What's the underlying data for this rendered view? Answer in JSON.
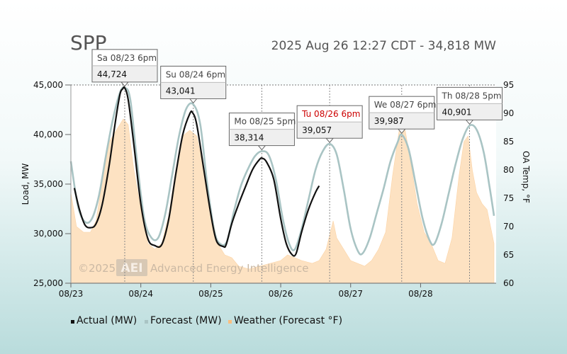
{
  "header": {
    "region": "SPP",
    "status": "2025 Aug 26 12:27 CDT - 34,818 MW"
  },
  "watermark": {
    "copyright": "©2025",
    "brand": "AEI",
    "company": "Advanced Energy Intelligence"
  },
  "colors": {
    "actual": "#111111",
    "forecast": "#a9c4c4",
    "weather": "#fde2c2",
    "highlight": "#cc0000"
  },
  "chart_data": {
    "type": "line",
    "x_unit": "day index starting 08/23",
    "x_range": [
      0,
      6.08
    ],
    "x_ticks": [
      {
        "x": 0,
        "label": "08/23"
      },
      {
        "x": 1,
        "label": "08/24"
      },
      {
        "x": 2,
        "label": "08/25"
      },
      {
        "x": 3,
        "label": "08/26"
      },
      {
        "x": 4,
        "label": "08/27"
      },
      {
        "x": 5,
        "label": "08/28"
      }
    ],
    "y_left": {
      "label": "Load, MW",
      "range": [
        25000,
        45000
      ],
      "ticks": [
        {
          "v": 25000,
          "label": "25,000"
        },
        {
          "v": 30000,
          "label": "30,000"
        },
        {
          "v": 35000,
          "label": "35,000"
        },
        {
          "v": 40000,
          "label": "40,000"
        },
        {
          "v": 45000,
          "label": "45,000"
        }
      ]
    },
    "y_right": {
      "label": "OA Temp, °F",
      "range": [
        60,
        95
      ],
      "ticks": [
        {
          "v": 60,
          "label": "60"
        },
        {
          "v": 65,
          "label": "65"
        },
        {
          "v": 70,
          "label": "70"
        },
        {
          "v": 75,
          "label": "75"
        },
        {
          "v": 80,
          "label": "80"
        },
        {
          "v": 85,
          "label": "85"
        },
        {
          "v": 90,
          "label": "90"
        },
        {
          "v": 95,
          "label": "95"
        }
      ]
    },
    "grid": {
      "horizontal": "45,000 only (dotted)",
      "vertical": "at each daily peak (dotted)"
    },
    "legend": {
      "position": "bottom",
      "items": [
        {
          "name": "Actual (MW)",
          "color": "#111111"
        },
        {
          "name": "Forecast (MW)",
          "color": "#a9c4c4"
        },
        {
          "name": "Weather (Forecast °F)",
          "color": "#fbbf80"
        }
      ]
    },
    "series": [
      {
        "name": "Actual (MW)",
        "points": [
          [
            0.05,
            34600
          ],
          [
            0.12,
            32500
          ],
          [
            0.2,
            30900
          ],
          [
            0.28,
            30600
          ],
          [
            0.36,
            31000
          ],
          [
            0.45,
            33000
          ],
          [
            0.55,
            37000
          ],
          [
            0.63,
            41000
          ],
          [
            0.7,
            44000
          ],
          [
            0.74,
            44600
          ],
          [
            0.77,
            44700
          ],
          [
            0.82,
            43500
          ],
          [
            0.9,
            39000
          ],
          [
            1.0,
            33000
          ],
          [
            1.1,
            29500
          ],
          [
            1.2,
            28800
          ],
          [
            1.3,
            28900
          ],
          [
            1.4,
            31500
          ],
          [
            1.5,
            36000
          ],
          [
            1.6,
            40000
          ],
          [
            1.7,
            42100
          ],
          [
            1.74,
            42200
          ],
          [
            1.8,
            41000
          ],
          [
            1.9,
            36500
          ],
          [
            2.0,
            32000
          ],
          [
            2.08,
            29300
          ],
          [
            2.18,
            28700
          ],
          [
            2.22,
            28900
          ],
          [
            2.3,
            31000
          ],
          [
            2.4,
            33000
          ],
          [
            2.5,
            34800
          ],
          [
            2.6,
            36500
          ],
          [
            2.7,
            37500
          ],
          [
            2.74,
            37600
          ],
          [
            2.8,
            37200
          ],
          [
            2.9,
            35500
          ],
          [
            3.0,
            31500
          ],
          [
            3.08,
            29000
          ],
          [
            3.16,
            27900
          ],
          [
            3.22,
            28000
          ],
          [
            3.3,
            30200
          ],
          [
            3.4,
            32500
          ],
          [
            3.5,
            34200
          ],
          [
            3.55,
            34818
          ]
        ]
      },
      {
        "name": "Forecast (MW)",
        "points": [
          [
            0.0,
            37300
          ],
          [
            0.1,
            32800
          ],
          [
            0.2,
            31200
          ],
          [
            0.3,
            31500
          ],
          [
            0.4,
            33800
          ],
          [
            0.5,
            37800
          ],
          [
            0.6,
            41500
          ],
          [
            0.7,
            44200
          ],
          [
            0.77,
            44724
          ],
          [
            0.85,
            43500
          ],
          [
            0.95,
            37000
          ],
          [
            1.05,
            31500
          ],
          [
            1.15,
            29600
          ],
          [
            1.25,
            29600
          ],
          [
            1.35,
            32000
          ],
          [
            1.45,
            36000
          ],
          [
            1.55,
            40000
          ],
          [
            1.65,
            42600
          ],
          [
            1.75,
            43041
          ],
          [
            1.85,
            41000
          ],
          [
            1.95,
            35000
          ],
          [
            2.05,
            30300
          ],
          [
            2.13,
            29000
          ],
          [
            2.23,
            29200
          ],
          [
            2.33,
            32200
          ],
          [
            2.43,
            34800
          ],
          [
            2.53,
            36500
          ],
          [
            2.63,
            37800
          ],
          [
            2.73,
            38314
          ],
          [
            2.83,
            37900
          ],
          [
            2.93,
            35500
          ],
          [
            3.03,
            31500
          ],
          [
            3.12,
            29000
          ],
          [
            3.2,
            28400
          ],
          [
            3.3,
            30500
          ],
          [
            3.4,
            33500
          ],
          [
            3.5,
            36500
          ],
          [
            3.6,
            38300
          ],
          [
            3.7,
            39057
          ],
          [
            3.8,
            38000
          ],
          [
            3.9,
            34500
          ],
          [
            4.0,
            30500
          ],
          [
            4.1,
            28300
          ],
          [
            4.17,
            28000
          ],
          [
            4.27,
            29500
          ],
          [
            4.37,
            32000
          ],
          [
            4.47,
            34500
          ],
          [
            4.57,
            37300
          ],
          [
            4.67,
            39200
          ],
          [
            4.73,
            39987
          ],
          [
            4.83,
            38500
          ],
          [
            4.93,
            35000
          ],
          [
            5.03,
            31500
          ],
          [
            5.13,
            29300
          ],
          [
            5.2,
            29000
          ],
          [
            5.3,
            31000
          ],
          [
            5.4,
            34000
          ],
          [
            5.5,
            37000
          ],
          [
            5.6,
            39500
          ],
          [
            5.7,
            40901
          ],
          [
            5.8,
            40500
          ],
          [
            5.9,
            38300
          ],
          [
            5.98,
            35000
          ],
          [
            6.05,
            31800
          ]
        ]
      },
      {
        "name": "Weather (Forecast °F)",
        "points": [
          [
            0.0,
            76
          ],
          [
            0.08,
            70
          ],
          [
            0.18,
            69
          ],
          [
            0.28,
            69
          ],
          [
            0.36,
            71
          ],
          [
            0.45,
            78
          ],
          [
            0.55,
            85
          ],
          [
            0.65,
            87
          ],
          [
            0.75,
            89
          ],
          [
            0.82,
            88
          ],
          [
            0.9,
            80
          ],
          [
            1.0,
            73
          ],
          [
            1.1,
            67
          ],
          [
            1.2,
            66
          ],
          [
            1.3,
            67
          ],
          [
            1.4,
            72
          ],
          [
            1.5,
            80
          ],
          [
            1.6,
            86
          ],
          [
            1.7,
            87
          ],
          [
            1.8,
            86
          ],
          [
            1.9,
            80
          ],
          [
            2.0,
            73
          ],
          [
            2.1,
            67
          ],
          [
            2.2,
            65
          ],
          [
            2.3,
            64.5
          ],
          [
            2.4,
            63
          ],
          [
            2.55,
            62.5
          ],
          [
            2.7,
            63
          ],
          [
            2.85,
            63.5
          ],
          [
            3.0,
            64
          ],
          [
            3.1,
            65
          ],
          [
            3.2,
            64.5
          ],
          [
            3.3,
            64
          ],
          [
            3.45,
            63.5
          ],
          [
            3.55,
            64
          ],
          [
            3.65,
            66
          ],
          [
            3.75,
            71
          ],
          [
            3.8,
            68
          ],
          [
            3.9,
            66
          ],
          [
            4.0,
            64
          ],
          [
            4.1,
            63.5
          ],
          [
            4.2,
            63
          ],
          [
            4.3,
            64
          ],
          [
            4.4,
            66
          ],
          [
            4.5,
            69
          ],
          [
            4.6,
            79
          ],
          [
            4.7,
            87.5
          ],
          [
            4.78,
            87
          ],
          [
            4.85,
            82
          ],
          [
            4.95,
            74
          ],
          [
            5.05,
            69
          ],
          [
            5.15,
            67
          ],
          [
            5.25,
            64
          ],
          [
            5.35,
            63.5
          ],
          [
            5.45,
            68
          ],
          [
            5.55,
            79
          ],
          [
            5.62,
            85
          ],
          [
            5.68,
            86
          ],
          [
            5.74,
            80
          ],
          [
            5.8,
            76
          ],
          [
            5.88,
            74
          ],
          [
            5.95,
            73
          ],
          [
            6.0,
            70
          ],
          [
            6.05,
            67
          ]
        ]
      }
    ],
    "annotations": [
      {
        "day": "Sa 08/23 6pm",
        "value": "44,724",
        "x": 0.77,
        "y": 44724,
        "highlight": false
      },
      {
        "day": "Su 08/24 6pm",
        "value": "43,041",
        "x": 1.75,
        "y": 43041,
        "highlight": false
      },
      {
        "day": "Mo 08/25 5pm",
        "value": "38,314",
        "x": 2.73,
        "y": 38314,
        "highlight": false
      },
      {
        "day": "Tu 08/26 6pm",
        "value": "39,057",
        "x": 3.7,
        "y": 39057,
        "highlight": true
      },
      {
        "day": "We 08/27 6pm",
        "value": "39,987",
        "x": 4.73,
        "y": 39987,
        "highlight": false
      },
      {
        "day": "Th 08/28 5pm",
        "value": "40,901",
        "x": 5.7,
        "y": 40901,
        "highlight": false
      }
    ]
  }
}
